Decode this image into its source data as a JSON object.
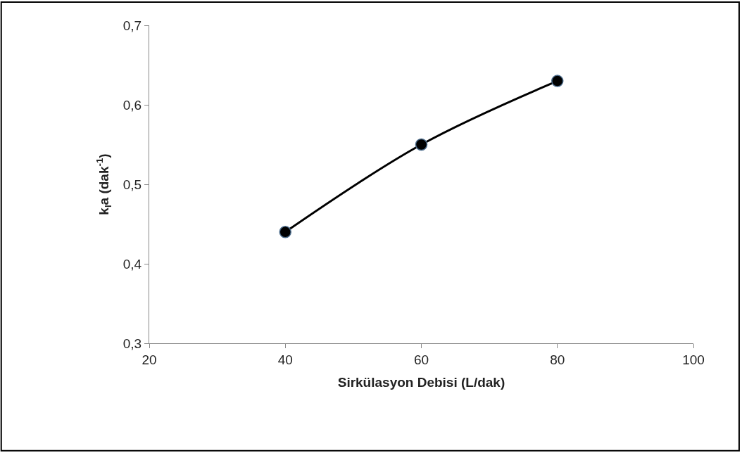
{
  "chart_data": {
    "type": "line",
    "xlabel": "Sirkülasyon Debisi (L/dak)",
    "ylabel": "k$_{l}$a (dak$^{-1}$)",
    "x": [
      40,
      60,
      80
    ],
    "series": [
      {
        "color": "#000000",
        "values": [
          0.44,
          0.55,
          0.63
        ]
      }
    ],
    "xlim": [
      20,
      100
    ],
    "xticks": [
      20,
      40,
      60,
      80,
      100
    ],
    "ylim": [
      0.3,
      0.7
    ],
    "yticks": [
      {
        "value": 0.3,
        "label": "0,3"
      },
      {
        "value": 0.4,
        "label": "0,4"
      },
      {
        "value": 0.5,
        "label": "0,5"
      },
      {
        "value": 0.6,
        "label": "0,6"
      },
      {
        "value": 0.7,
        "label": "0,7"
      }
    ],
    "marker": "circle",
    "line_style": "solid"
  }
}
